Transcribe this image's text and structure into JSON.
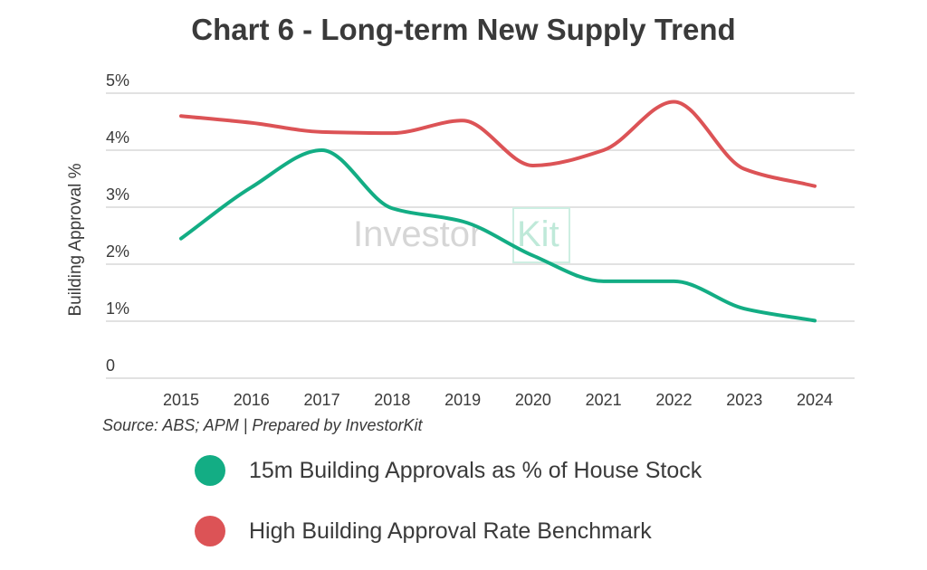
{
  "chart_data": {
    "type": "line",
    "title": "Chart 6 - Long-term New Supply Trend",
    "xlabel": "",
    "ylabel": "Building Approval %",
    "categories": [
      "2015",
      "2016",
      "2017",
      "2018",
      "2019",
      "2020",
      "2021",
      "2022",
      "2023",
      "2024"
    ],
    "ytick_labels": [
      "0",
      "1%",
      "2%",
      "3%",
      "4%",
      "5%"
    ],
    "ylim": [
      0,
      5
    ],
    "grid": true,
    "legend_position": "bottom",
    "series": [
      {
        "name": "15m Building Approvals as % of House Stock",
        "color": "#13ad84",
        "values": [
          2.45,
          3.35,
          4.0,
          2.98,
          2.75,
          2.15,
          1.7,
          1.7,
          1.22,
          1.01
        ]
      },
      {
        "name": "High Building Approval Rate Benchmark",
        "color": "#dc5356",
        "values": [
          4.6,
          4.48,
          4.32,
          4.3,
          4.52,
          3.73,
          4.0,
          4.85,
          3.67,
          3.37
        ]
      }
    ],
    "source": "Source: ABS; APM | Prepared by InvestorKit",
    "watermark": {
      "main": "Investor",
      "accent": "Kit"
    }
  }
}
